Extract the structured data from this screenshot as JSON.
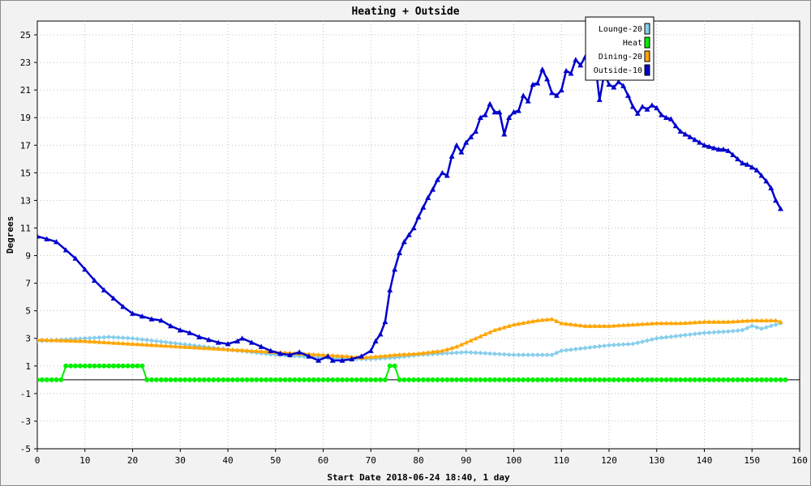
{
  "chart_data": {
    "type": "line",
    "title": "Heating + Outside",
    "xlabel": "Start Date 2018-06-24 18:40, 1 day",
    "ylabel": "Degrees",
    "xlim": [
      0,
      160
    ],
    "ylim": [
      -5,
      26
    ],
    "x_ticks": [
      0,
      10,
      20,
      30,
      40,
      50,
      60,
      70,
      80,
      90,
      100,
      110,
      120,
      130,
      140,
      150,
      160
    ],
    "y_ticks": [
      -5,
      -3,
      -1,
      1,
      3,
      5,
      7,
      9,
      11,
      13,
      15,
      17,
      19,
      21,
      23,
      25
    ],
    "grid": true,
    "legend_position": "top-right",
    "series": [
      {
        "name": "Lounge-20",
        "color": "#87ceeb",
        "marker": "diamond",
        "points": [
          [
            0,
            2.8
          ],
          [
            5,
            2.9
          ],
          [
            10,
            3.0
          ],
          [
            15,
            3.1
          ],
          [
            20,
            3.0
          ],
          [
            25,
            2.8
          ],
          [
            30,
            2.6
          ],
          [
            35,
            2.4
          ],
          [
            40,
            2.2
          ],
          [
            45,
            2.0
          ],
          [
            50,
            1.8
          ],
          [
            55,
            1.7
          ],
          [
            60,
            1.6
          ],
          [
            65,
            1.5
          ],
          [
            70,
            1.5
          ],
          [
            75,
            1.6
          ],
          [
            80,
            1.8
          ],
          [
            85,
            1.9
          ],
          [
            90,
            2.0
          ],
          [
            95,
            1.9
          ],
          [
            100,
            1.8
          ],
          [
            105,
            1.8
          ],
          [
            108,
            1.8
          ],
          [
            110,
            2.1
          ],
          [
            115,
            2.3
          ],
          [
            120,
            2.5
          ],
          [
            125,
            2.6
          ],
          [
            130,
            3.0
          ],
          [
            135,
            3.2
          ],
          [
            140,
            3.4
          ],
          [
            145,
            3.5
          ],
          [
            148,
            3.6
          ],
          [
            150,
            3.9
          ],
          [
            152,
            3.7
          ],
          [
            155,
            4.0
          ],
          [
            156,
            4.1
          ]
        ]
      },
      {
        "name": "Heat",
        "color": "#00ee00",
        "marker": "circle",
        "points": [
          [
            0,
            0
          ],
          [
            5,
            0
          ],
          [
            6,
            1
          ],
          [
            22,
            1
          ],
          [
            23,
            0
          ],
          [
            73,
            0
          ],
          [
            74,
            1
          ],
          [
            75,
            1
          ],
          [
            76,
            0
          ],
          [
            157,
            0
          ]
        ]
      },
      {
        "name": "Dining-20",
        "color": "#ffa500",
        "marker": "triangle",
        "points": [
          [
            0,
            2.9
          ],
          [
            10,
            2.8
          ],
          [
            20,
            2.6
          ],
          [
            30,
            2.4
          ],
          [
            40,
            2.2
          ],
          [
            50,
            2.0
          ],
          [
            55,
            1.9
          ],
          [
            60,
            1.8
          ],
          [
            65,
            1.7
          ],
          [
            68,
            1.6
          ],
          [
            72,
            1.7
          ],
          [
            75,
            1.8
          ],
          [
            80,
            1.9
          ],
          [
            85,
            2.1
          ],
          [
            88,
            2.4
          ],
          [
            92,
            3.0
          ],
          [
            96,
            3.6
          ],
          [
            100,
            4.0
          ],
          [
            105,
            4.3
          ],
          [
            108,
            4.4
          ],
          [
            110,
            4.1
          ],
          [
            115,
            3.9
          ],
          [
            120,
            3.9
          ],
          [
            125,
            4.0
          ],
          [
            130,
            4.1
          ],
          [
            135,
            4.1
          ],
          [
            140,
            4.2
          ],
          [
            145,
            4.2
          ],
          [
            150,
            4.3
          ],
          [
            155,
            4.3
          ],
          [
            156,
            4.2
          ]
        ]
      },
      {
        "name": "Outside-10",
        "color": "#0000cc",
        "marker": "triangle",
        "points": [
          [
            0,
            10.4
          ],
          [
            2,
            10.2
          ],
          [
            4,
            10.0
          ],
          [
            6,
            9.4
          ],
          [
            8,
            8.8
          ],
          [
            10,
            8.0
          ],
          [
            12,
            7.2
          ],
          [
            14,
            6.5
          ],
          [
            16,
            5.9
          ],
          [
            18,
            5.3
          ],
          [
            20,
            4.8
          ],
          [
            22,
            4.6
          ],
          [
            24,
            4.4
          ],
          [
            26,
            4.3
          ],
          [
            28,
            3.9
          ],
          [
            30,
            3.6
          ],
          [
            32,
            3.4
          ],
          [
            34,
            3.1
          ],
          [
            36,
            2.9
          ],
          [
            38,
            2.7
          ],
          [
            40,
            2.6
          ],
          [
            42,
            2.8
          ],
          [
            43,
            3.0
          ],
          [
            45,
            2.7
          ],
          [
            47,
            2.4
          ],
          [
            49,
            2.1
          ],
          [
            51,
            1.9
          ],
          [
            53,
            1.8
          ],
          [
            55,
            2.0
          ],
          [
            57,
            1.7
          ],
          [
            59,
            1.4
          ],
          [
            61,
            1.7
          ],
          [
            62,
            1.4
          ],
          [
            64,
            1.4
          ],
          [
            66,
            1.5
          ],
          [
            68,
            1.7
          ],
          [
            70,
            2.1
          ],
          [
            71,
            2.8
          ],
          [
            72,
            3.3
          ],
          [
            73,
            4.2
          ],
          [
            74,
            6.5
          ],
          [
            75,
            8.0
          ],
          [
            76,
            9.2
          ],
          [
            77,
            10.0
          ],
          [
            78,
            10.5
          ],
          [
            79,
            11.0
          ],
          [
            80,
            11.8
          ],
          [
            81,
            12.5
          ],
          [
            82,
            13.2
          ],
          [
            83,
            13.8
          ],
          [
            84,
            14.5
          ],
          [
            85,
            15.0
          ],
          [
            86,
            14.8
          ],
          [
            87,
            16.2
          ],
          [
            88,
            17.0
          ],
          [
            89,
            16.5
          ],
          [
            90,
            17.2
          ],
          [
            91,
            17.6
          ],
          [
            92,
            18.0
          ],
          [
            93,
            19.0
          ],
          [
            94,
            19.2
          ],
          [
            95,
            20.0
          ],
          [
            96,
            19.4
          ],
          [
            97,
            19.4
          ],
          [
            98,
            17.8
          ],
          [
            99,
            19.0
          ],
          [
            100,
            19.4
          ],
          [
            101,
            19.5
          ],
          [
            102,
            20.6
          ],
          [
            103,
            20.2
          ],
          [
            104,
            21.4
          ],
          [
            105,
            21.5
          ],
          [
            106,
            22.5
          ],
          [
            107,
            21.8
          ],
          [
            108,
            20.8
          ],
          [
            109,
            20.6
          ],
          [
            110,
            21.0
          ],
          [
            111,
            22.4
          ],
          [
            112,
            22.2
          ],
          [
            113,
            23.2
          ],
          [
            114,
            22.8
          ],
          [
            115,
            23.4
          ],
          [
            116,
            22.5
          ],
          [
            117,
            23.2
          ],
          [
            118,
            20.3
          ],
          [
            119,
            22.2
          ],
          [
            120,
            21.4
          ],
          [
            121,
            21.2
          ],
          [
            122,
            21.6
          ],
          [
            123,
            21.3
          ],
          [
            124,
            20.6
          ],
          [
            125,
            19.8
          ],
          [
            126,
            19.3
          ],
          [
            127,
            19.8
          ],
          [
            128,
            19.6
          ],
          [
            129,
            19.9
          ],
          [
            130,
            19.7
          ],
          [
            131,
            19.2
          ],
          [
            132,
            19.0
          ],
          [
            133,
            18.9
          ],
          [
            134,
            18.4
          ],
          [
            135,
            18.0
          ],
          [
            136,
            17.8
          ],
          [
            137,
            17.6
          ],
          [
            138,
            17.4
          ],
          [
            139,
            17.2
          ],
          [
            140,
            17.0
          ],
          [
            141,
            16.9
          ],
          [
            142,
            16.8
          ],
          [
            143,
            16.7
          ],
          [
            144,
            16.7
          ],
          [
            145,
            16.6
          ],
          [
            146,
            16.3
          ],
          [
            147,
            16.0
          ],
          [
            148,
            15.7
          ],
          [
            149,
            15.6
          ],
          [
            150,
            15.4
          ],
          [
            151,
            15.2
          ],
          [
            152,
            14.8
          ],
          [
            153,
            14.4
          ],
          [
            154,
            13.9
          ],
          [
            155,
            13.0
          ],
          [
            156,
            12.4
          ]
        ]
      }
    ]
  }
}
